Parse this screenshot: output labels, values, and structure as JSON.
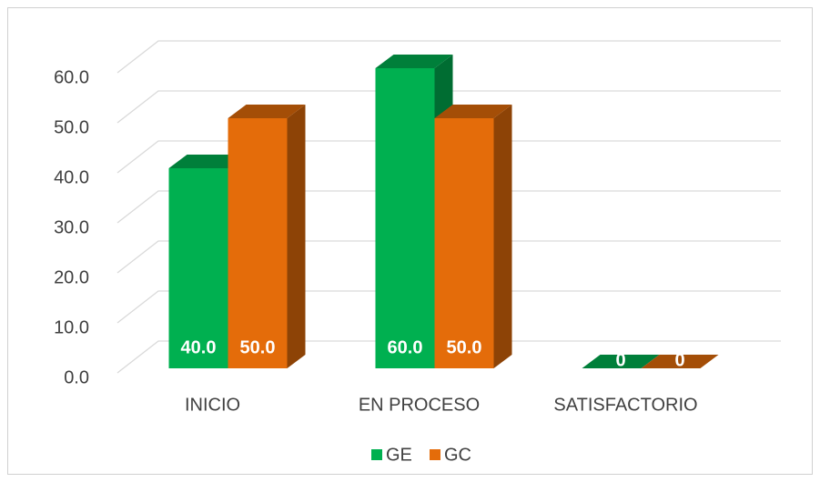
{
  "chart_data": {
    "type": "bar",
    "categories": [
      "INICIO",
      "EN PROCESO",
      "SATISFACTORIO"
    ],
    "series": [
      {
        "name": "GE",
        "color": "#00b050",
        "values": [
          40,
          60,
          0
        ],
        "value_labels": [
          "40.0",
          "60.0",
          "0"
        ]
      },
      {
        "name": "GC",
        "color": "#e46c0a",
        "values": [
          50,
          50,
          0
        ],
        "value_labels": [
          "50.0",
          "50.0",
          "0"
        ]
      }
    ],
    "ylim": [
      0,
      60
    ],
    "yticks": [
      {
        "value": 0,
        "label": "0.0"
      },
      {
        "value": 10,
        "label": "10.0"
      },
      {
        "value": 20,
        "label": "20.0"
      },
      {
        "value": 30,
        "label": "30.0"
      },
      {
        "value": 40,
        "label": "40.0"
      },
      {
        "value": 50,
        "label": "50.0"
      },
      {
        "value": 60,
        "label": "60.0"
      }
    ],
    "grid": true,
    "legend": "bottom"
  }
}
